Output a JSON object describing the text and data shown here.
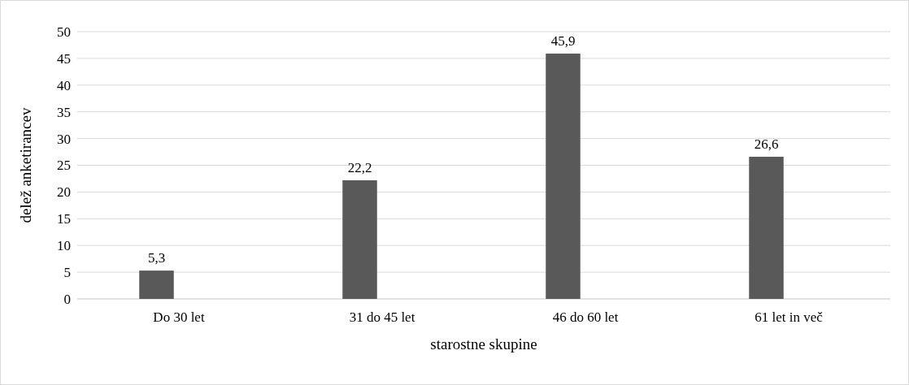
{
  "chart_data": {
    "type": "bar",
    "xlabel": "starostne skupine",
    "ylabel": "delež anketirancev",
    "categories": [
      "Do 30 let",
      "31 do 45 let",
      "46 do 60 let",
      "61 let in več"
    ],
    "values": [
      5.3,
      22.2,
      45.9,
      26.6
    ],
    "value_labels": [
      "5,3",
      "22,2",
      "45,9",
      "26,6"
    ],
    "color": "#595959",
    "ylim": [
      0,
      50
    ],
    "yticks": [
      0,
      5,
      10,
      15,
      20,
      25,
      30,
      35,
      40,
      45,
      50
    ],
    "grid": "y"
  }
}
